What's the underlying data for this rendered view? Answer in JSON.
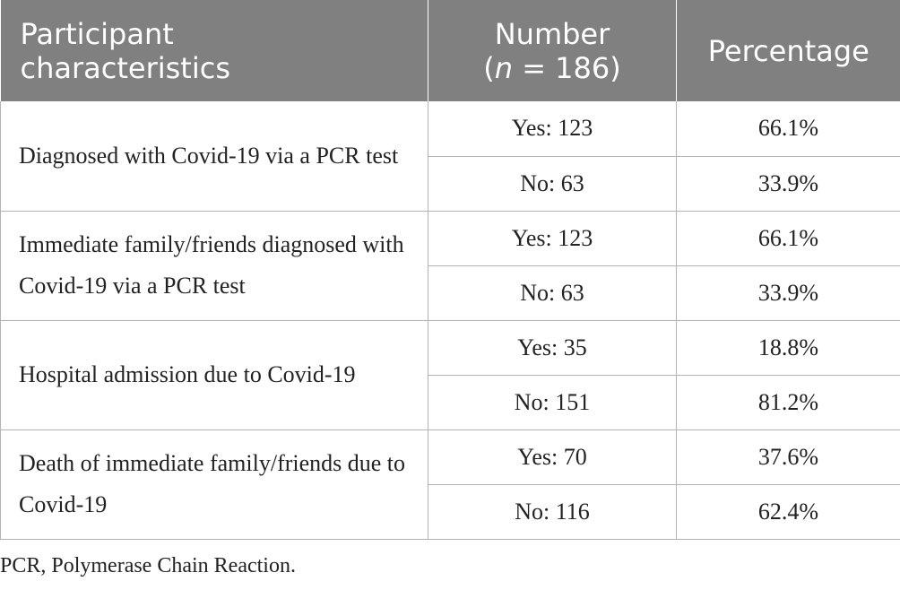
{
  "table": {
    "headers": {
      "characteristics_line1": "Participant",
      "characteristics_line2": "characteristics",
      "number_line1": "Number",
      "number_n": "n",
      "number_rest": " = 186)",
      "number_open": "(",
      "percentage": "Percentage"
    },
    "rows": [
      {
        "label": "Diagnosed with Covid-19 via a PCR test",
        "yes_count": "Yes: 123",
        "yes_pct": "66.1%",
        "no_count": "No: 63",
        "no_pct": "33.9%"
      },
      {
        "label": "Immediate family/friends diagnosed with Covid-19 via a PCR test",
        "yes_count": "Yes: 123",
        "yes_pct": "66.1%",
        "no_count": "No: 63",
        "no_pct": "33.9%"
      },
      {
        "label": "Hospital admission due to Covid-19",
        "yes_count": "Yes: 35",
        "yes_pct": "18.8%",
        "no_count": "No: 151",
        "no_pct": "81.2%"
      },
      {
        "label": "Death of immediate family/friends due to Covid-19",
        "yes_count": "Yes: 70",
        "yes_pct": "37.6%",
        "no_count": "No: 116",
        "no_pct": "62.4%"
      }
    ]
  },
  "footnote": "PCR, Polymerase Chain Reaction.",
  "colors": {
    "header_bg": "#808080",
    "header_text": "#ffffff",
    "grid_line": "#b3b3b3",
    "body_text": "#222222"
  }
}
